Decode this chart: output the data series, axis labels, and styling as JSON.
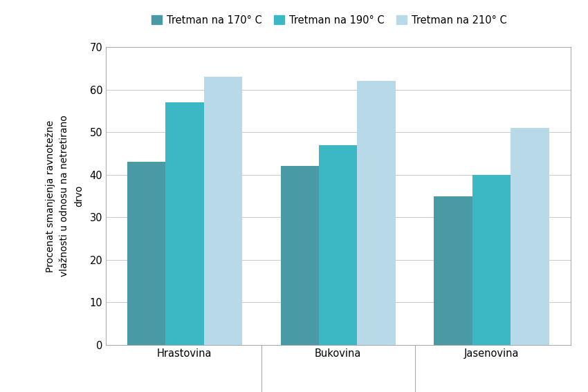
{
  "categories": [
    "Hrastovina",
    "Bukovina",
    "Jasenovina"
  ],
  "series": [
    {
      "label": "Tretman na 170° C",
      "values": [
        43,
        42,
        35
      ],
      "color": "#4a9aa5"
    },
    {
      "label": "Tretman na 190° C",
      "values": [
        57,
        47,
        40
      ],
      "color": "#3bb8c3"
    },
    {
      "label": "Tretman na 210° C",
      "values": [
        63,
        62,
        51
      ],
      "color": "#b8d9e8"
    }
  ],
  "ylabel_line1": "Procenat smanjenja ravnotežne",
  "ylabel_line2": "vlažnosti u odnosu na netretirano",
  "ylabel_line3": "drvo",
  "ylim": [
    0,
    70
  ],
  "yticks": [
    0,
    10,
    20,
    30,
    40,
    50,
    60,
    70
  ],
  "bar_width": 0.25,
  "background_color": "#ffffff",
  "grid_color": "#c8c8c8",
  "spine_color": "#aaaaaa",
  "legend_fontsize": 10.5,
  "ylabel_fontsize": 10,
  "tick_fontsize": 10.5
}
